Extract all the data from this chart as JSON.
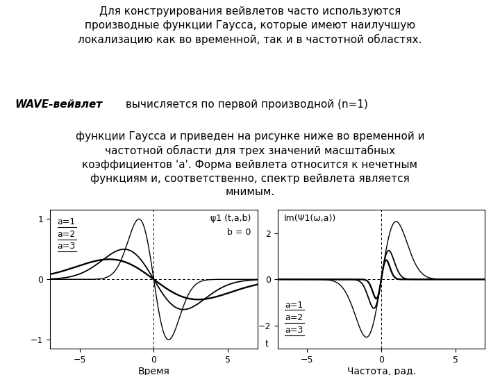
{
  "title_text": "Для конструирования вейвлетов часто используются\nпроизводные функции Гаусса, которые имеют наилучшую\nлокализацию как во временной, так и в частотной областях.",
  "body_bold": "WAVE-вейвлет",
  "body_rest_line1": " вычисляется по первой производной (n=1)",
  "body_rest": "функции Гаусса и приведен на рисунке ниже во временной и\nчастотной области для трех значений масштабных\nкоэффициентов 'a'. Форма вейвлета относится к нечетным\nфункциям и, соответственно, спектр вейвлета является\nмнимым.",
  "left_annotation_line1": "ψ1 (t,a,b)",
  "left_annotation_line2": "b = 0",
  "right_annotation": "Im(Ψ1(ω,a))",
  "left_xlabel": "Время",
  "left_tlabel": "t",
  "right_xlabel": "Частота, рад.",
  "scales": [
    1,
    2,
    3
  ],
  "bg_color": "#ffffff",
  "line_color": "#000000",
  "title_fontsize": 11,
  "body_fontsize": 11,
  "plot_fontsize": 9
}
